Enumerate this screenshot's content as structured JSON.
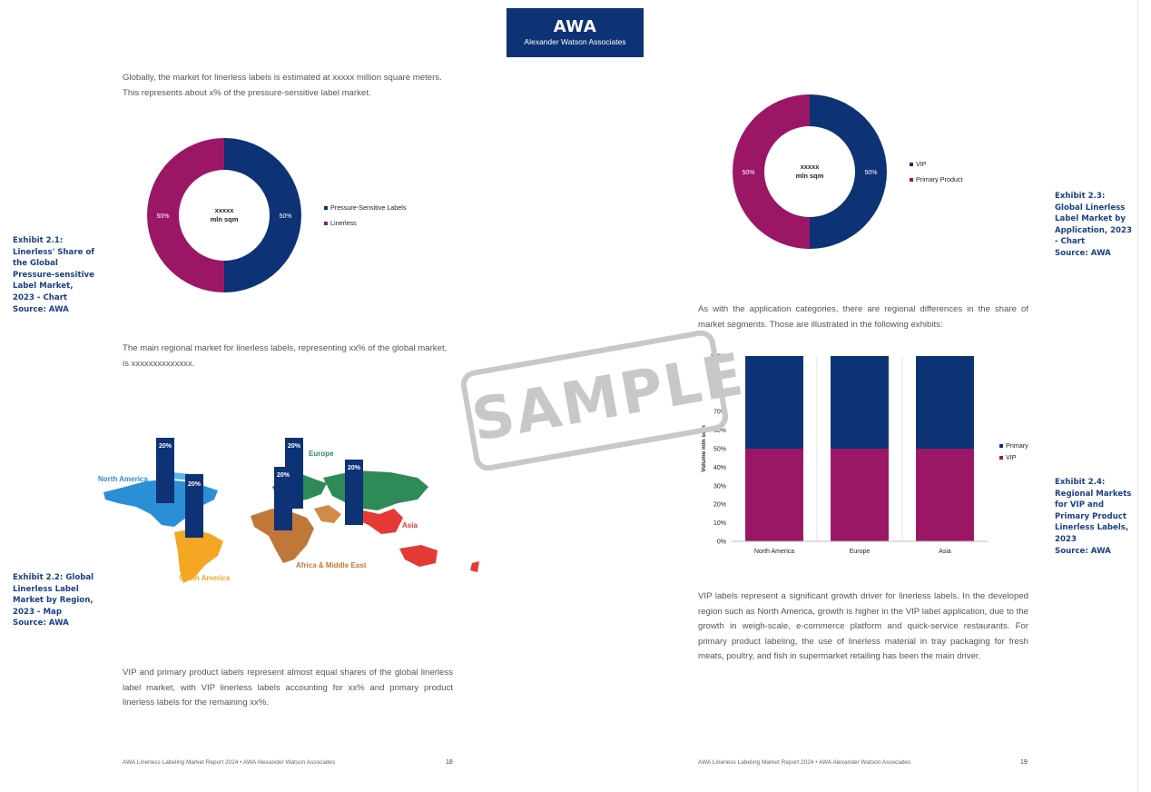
{
  "logo": {
    "title": "AWA",
    "subtitle": "Alexander Watson Associates"
  },
  "page_left": {
    "para1": "Globally, the market for linerless labels is estimated at xxxxx million square meters. This represents about x% of the pressure-sensitive label market.",
    "para2": "The main regional market for linerless labels, representing xx% of the global market, is xxxxxxxxxxxxxx.",
    "para3": "VIP and primary product labels represent almost equal shares of the global linerless label market, with VIP linerless labels accounting for xx% and primary product linerless labels for the remaining xx%.",
    "exhibit1": {
      "caption": "Exhibit 2.1: Linerless' Share of the Global Pressure-sensitive Label Market, 2023 - Chart",
      "source": "Source: AWA"
    },
    "exhibit2": {
      "caption": "Exhibit 2.2: Global Linerless Label Market by Region, 2023 - Map",
      "source": "Source: AWA"
    },
    "footer": "AWA Linerless Labeling Market Report 2024 • AWA Alexander Watson Associates",
    "page_number": "18"
  },
  "page_right": {
    "para1": "As with the application categories, there are regional differences in the share of market segments. Those are illustrated in the following exhibits:",
    "para2": "VIP labels represent a significant growth driver for linerless labels. In the developed region such as North America, growth is higher in the VIP  label application, due to the growth in weigh-scale, e-commerce platform and quick-service restaurants. For primary product labeling, the use of linerless material in tray packaging for fresh meats, poultry, and fish in supermarket retailing has been the main driver.",
    "exhibit3": {
      "caption": "Exhibit 2.3: Global Linerless Label Market by Application, 2023 - Chart",
      "source": "Source: AWA"
    },
    "exhibit4": {
      "caption": "Exhibit 2.4:  Regional Markets  for VIP and Primary Product Linerless Labels, 2023",
      "source": "Source: AWA"
    },
    "footer": "AWA Linerless Labeling Market Report 2024 • AWA Alexander Watson Associates",
    "page_number": "19"
  },
  "watermark": "SAMPLE",
  "map": {
    "regions": [
      "North America",
      "Europe",
      "South America",
      "Africa & Middle East",
      "Asia"
    ],
    "bar_labels": [
      "20%",
      "20%",
      "20%",
      "20%",
      "20%"
    ],
    "colors": {
      "north_america": "#2a8fd6",
      "europe": "#2e8b57",
      "south_america": "#f5a623",
      "africa": "#c0773a",
      "asia": "#e53935",
      "bar": "#0d3275"
    }
  },
  "colors": {
    "navy": "#0d3275",
    "magenta": "#9b1766"
  },
  "chart_data": [
    {
      "type": "pie",
      "variant": "donut",
      "center_label": [
        "xxxxx",
        "mln sqm"
      ],
      "series": [
        {
          "name": "Pressure-Sensitive Labels",
          "value": 50,
          "label": "50%",
          "color": "#0d3275"
        },
        {
          "name": "Linerless",
          "value": 50,
          "label": "50%",
          "color": "#9b1766"
        }
      ],
      "legend": "right"
    },
    {
      "type": "pie",
      "variant": "donut",
      "center_label": [
        "xxxxx",
        "mln sqm"
      ],
      "series": [
        {
          "name": "VIP",
          "value": 50,
          "label": "50%",
          "color": "#0d3275"
        },
        {
          "name": "Primary Product",
          "value": 50,
          "label": "50%",
          "color": "#9b1766"
        }
      ],
      "legend": "right"
    },
    {
      "type": "bar",
      "stacked": true,
      "percent": true,
      "categories": [
        "North America",
        "Europe",
        "Asia"
      ],
      "series": [
        {
          "name": "VIP",
          "values": [
            50,
            50,
            50
          ],
          "color": "#9b1766"
        },
        {
          "name": "Primary",
          "values": [
            50,
            50,
            50
          ],
          "color": "#0d3275"
        }
      ],
      "ylabel": "Volume mln sqm",
      "yticks": [
        "0%",
        "10%",
        "20%",
        "30%",
        "40%",
        "50%",
        "60%",
        "70%",
        "80%",
        "90%",
        "100%"
      ],
      "ylim": [
        0,
        100
      ],
      "legend": "right"
    }
  ]
}
